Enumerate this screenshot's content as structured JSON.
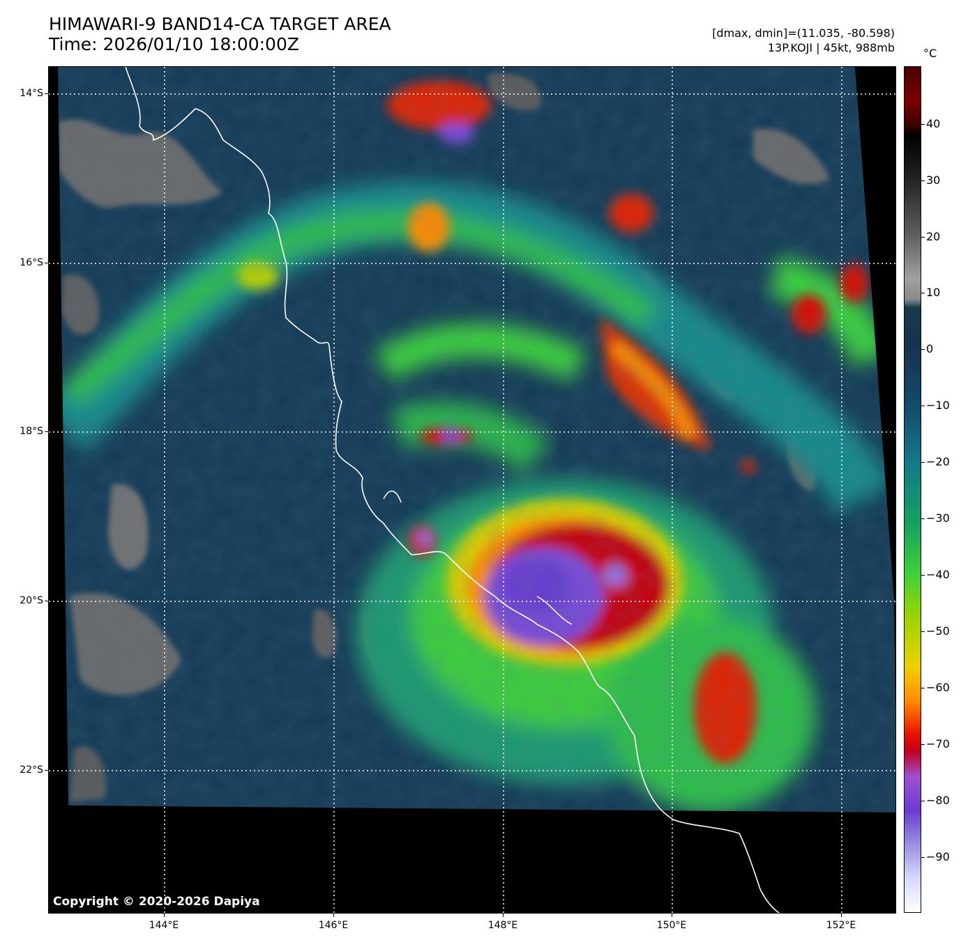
{
  "header": {
    "title": "HIMAWARI-9 BAND14-CA TARGET AREA",
    "time": "Time: 2026/01/10 18:00:00Z",
    "dminmax": "[dmax, dmin]=(11.035, -80.598)",
    "storm": "13P.KOJI | 45kt, 988mb"
  },
  "map": {
    "copyright": "Copyright © 2020-2026 Dapiya",
    "lat_labels": [
      "14°S",
      "16°S",
      "18°S",
      "20°S",
      "22°S"
    ],
    "lon_labels": [
      "144°E",
      "146°E",
      "148°E",
      "150°E",
      "152°E"
    ]
  },
  "colorbar": {
    "unit": "°C",
    "labels": [
      "40",
      "30",
      "20",
      "10",
      "0",
      "−10",
      "−20",
      "−30",
      "−40",
      "−50",
      "−60",
      "−70",
      "−80",
      "−90"
    ],
    "colors": {
      "cold_core": "#7a4ad8",
      "deep_red": "#d01000",
      "land_gray": "#7a7a7a",
      "ocean_blue": "#143a55"
    }
  }
}
